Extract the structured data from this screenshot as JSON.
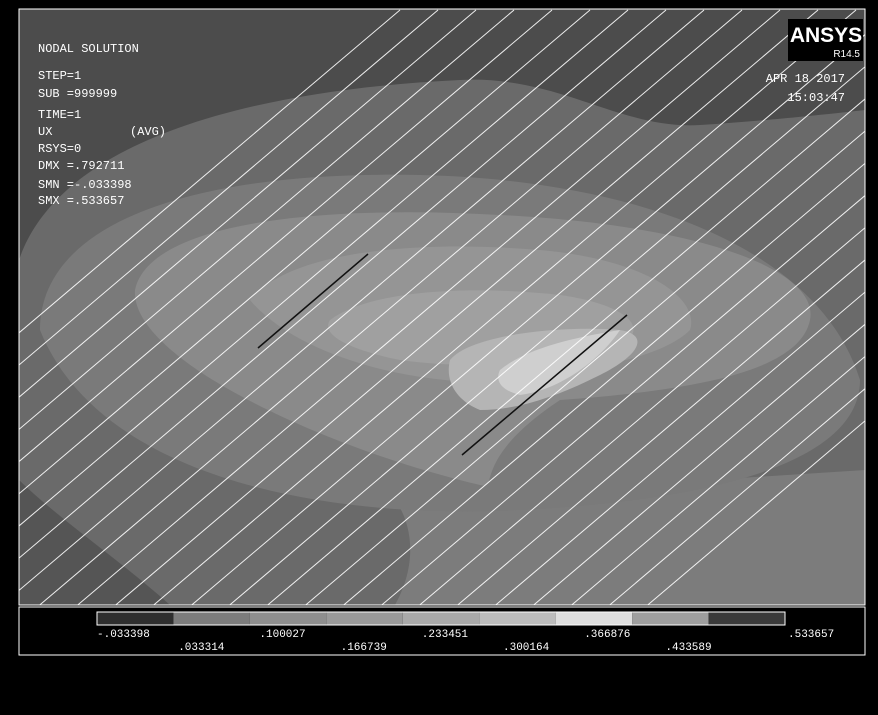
{
  "header": {
    "title": "NODAL SOLUTION",
    "step": "STEP=1",
    "sub": "SUB =999999",
    "time": "TIME=1",
    "item": "UX",
    "avg": "(AVG)",
    "rsys": "RSYS=0",
    "dmx": "DMX =.792711",
    "smn": "SMN =-.033398",
    "smx": "SMX =.533657"
  },
  "logo": {
    "name": "ANSYS",
    "version": "R14.5"
  },
  "timestamp": {
    "date": "APR 18 2017",
    "time": "15:03:47"
  },
  "legend": {
    "labels": [
      "-.033398",
      ".033314",
      ".100027",
      ".166739",
      ".233451",
      ".300164",
      ".366876",
      ".433589",
      ".533657"
    ]
  }
}
